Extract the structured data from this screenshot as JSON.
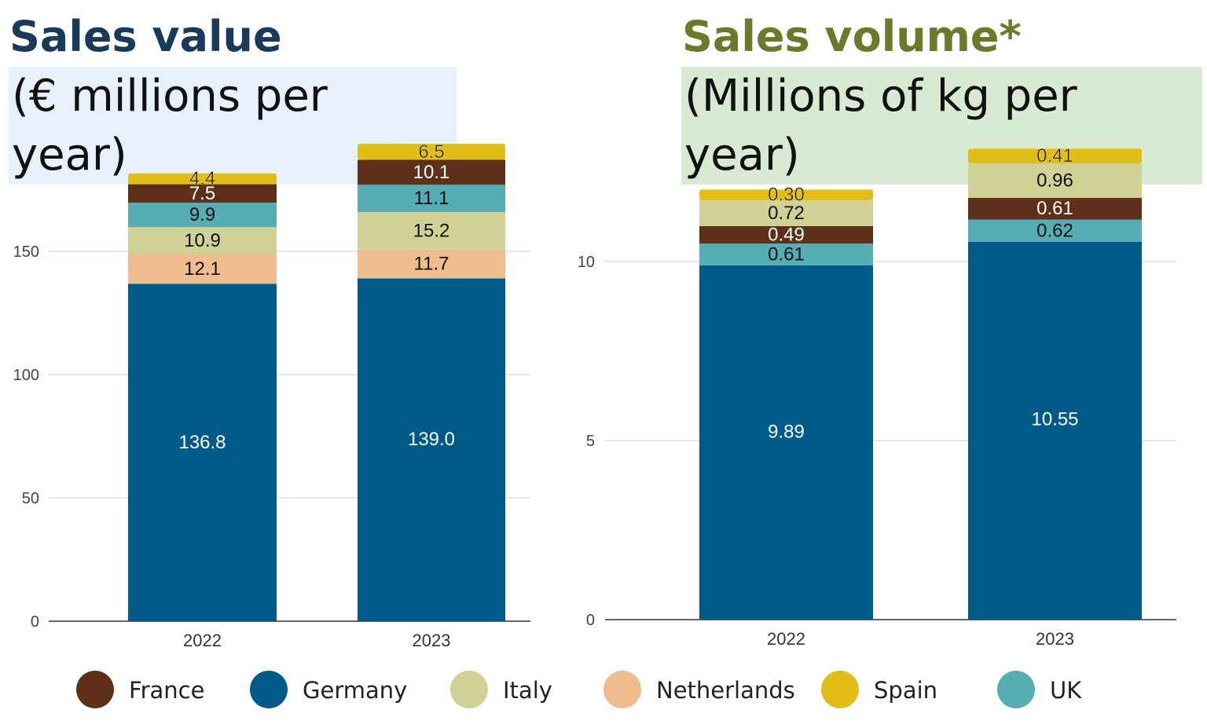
{
  "colors": {
    "France": "#5f3019",
    "Germany": "#005b8a",
    "Italy": "#cfd195",
    "Netherlands": "#efbd8d",
    "Spain": "#e1be17",
    "UK": "#56adb4",
    "title_left": "#1a3a5c",
    "title_right": "#6b7a2a",
    "subtitle_bg_left": "#e6f1fb",
    "subtitle_bg_right": "#d9ead3"
  },
  "legend": [
    "France",
    "Germany",
    "Italy",
    "Netherlands",
    "Spain",
    "UK"
  ],
  "chart_data": [
    {
      "type": "bar",
      "stacked": true,
      "title": "Sales value",
      "subtitle": "(€ millions per year)",
      "categories": [
        "2022",
        "2023"
      ],
      "ylim": [
        0,
        190
      ],
      "yticks": [
        0,
        50,
        100,
        150
      ],
      "grid": true,
      "legend_position": "bottom",
      "series": [
        {
          "name": "Germany",
          "values": [
            136.8,
            139.0
          ],
          "labels": [
            "136.8",
            "139.0"
          ]
        },
        {
          "name": "Netherlands",
          "values": [
            12.1,
            11.7
          ],
          "labels": [
            "12.1",
            "11.7"
          ]
        },
        {
          "name": "Italy",
          "values": [
            10.9,
            15.2
          ],
          "labels": [
            "10.9",
            "15.2"
          ]
        },
        {
          "name": "UK",
          "values": [
            9.9,
            11.1
          ],
          "labels": [
            "9.9",
            "11.1"
          ]
        },
        {
          "name": "France",
          "values": [
            7.5,
            10.1
          ],
          "labels": [
            "7.5",
            "10.1"
          ]
        },
        {
          "name": "Spain",
          "values": [
            4.4,
            6.5
          ],
          "labels": [
            "4.4",
            "6.5"
          ]
        }
      ]
    },
    {
      "type": "bar",
      "stacked": true,
      "title": "Sales volume*",
      "subtitle": "(Millions of kg per year)",
      "categories": [
        "2022",
        "2023"
      ],
      "ylim": [
        0,
        13
      ],
      "yticks": [
        0,
        5,
        10
      ],
      "grid": true,
      "legend_position": "bottom",
      "series": [
        {
          "name": "Germany",
          "values": [
            9.89,
            10.55
          ],
          "labels": [
            "9.89",
            "10.55"
          ]
        },
        {
          "name": "UK",
          "values": [
            0.61,
            0.62
          ],
          "labels": [
            "0.61",
            "0.62"
          ]
        },
        {
          "name": "France",
          "values": [
            0.49,
            0.61
          ],
          "labels": [
            "0.49",
            "0.61"
          ]
        },
        {
          "name": "Italy",
          "values": [
            0.72,
            0.96
          ],
          "labels": [
            "0.72",
            "0.96"
          ]
        },
        {
          "name": "Spain",
          "values": [
            0.3,
            0.41
          ],
          "labels": [
            "0.30",
            "0.41"
          ]
        }
      ]
    }
  ]
}
